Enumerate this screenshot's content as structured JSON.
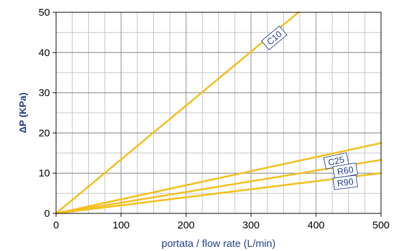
{
  "chart_data": {
    "type": "line",
    "xlabel": "portata / flow rate (L/min)",
    "ylabel": "ΔP (KPa)",
    "xlim": [
      0,
      500
    ],
    "ylim": [
      0,
      50
    ],
    "x_ticks": [
      0,
      100,
      200,
      300,
      400,
      500
    ],
    "y_ticks": [
      0,
      10,
      20,
      30,
      40,
      50
    ],
    "x_minor_step": 25,
    "y_minor_step": 5,
    "grid": true,
    "line_color": "#f2c01e",
    "label_color": "#1f3f8f",
    "series": [
      {
        "name": "C10",
        "x": [
          0,
          373
        ],
        "y": [
          0,
          50
        ]
      },
      {
        "name": "C25",
        "x": [
          0,
          500
        ],
        "y": [
          0,
          17.5
        ]
      },
      {
        "name": "R60",
        "x": [
          0,
          500
        ],
        "y": [
          0,
          13.3
        ]
      },
      {
        "name": "R90",
        "x": [
          0,
          500
        ],
        "y": [
          0,
          10
        ]
      }
    ]
  }
}
